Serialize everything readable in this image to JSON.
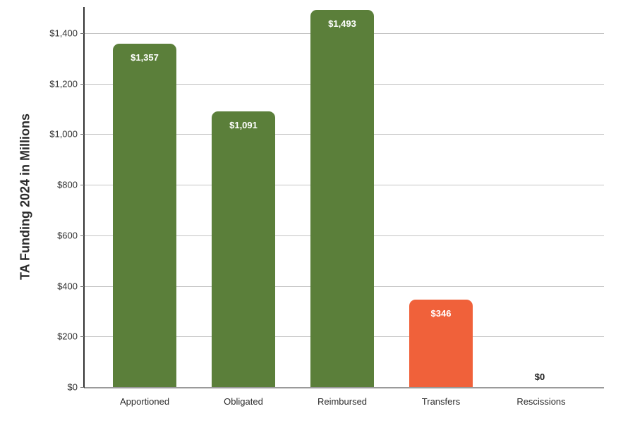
{
  "chart_data": {
    "type": "bar",
    "title": "",
    "xlabel": "",
    "ylabel": "TA Funding 2024 in Millions",
    "ylim": [
      0,
      1500
    ],
    "yticks": [
      0,
      200,
      400,
      600,
      800,
      1000,
      1200,
      1400
    ],
    "ytick_labels": [
      "$0",
      "$200",
      "$400",
      "$600",
      "$800",
      "$1,000",
      "$1,200",
      "$1,400"
    ],
    "grid": true,
    "legend": null,
    "categories": [
      "Apportioned",
      "Obligated",
      "Reimbursed",
      "Transfers",
      "Rescissions"
    ],
    "values": [
      1357,
      1091,
      1493,
      346,
      0
    ],
    "data_labels": [
      "$1,357",
      "$1,091",
      "$1,493",
      "$346",
      "$0"
    ],
    "colors": [
      "#5b7f3a",
      "#5b7f3a",
      "#5b7f3a",
      "#f0613a",
      "#5b7f3a"
    ]
  }
}
